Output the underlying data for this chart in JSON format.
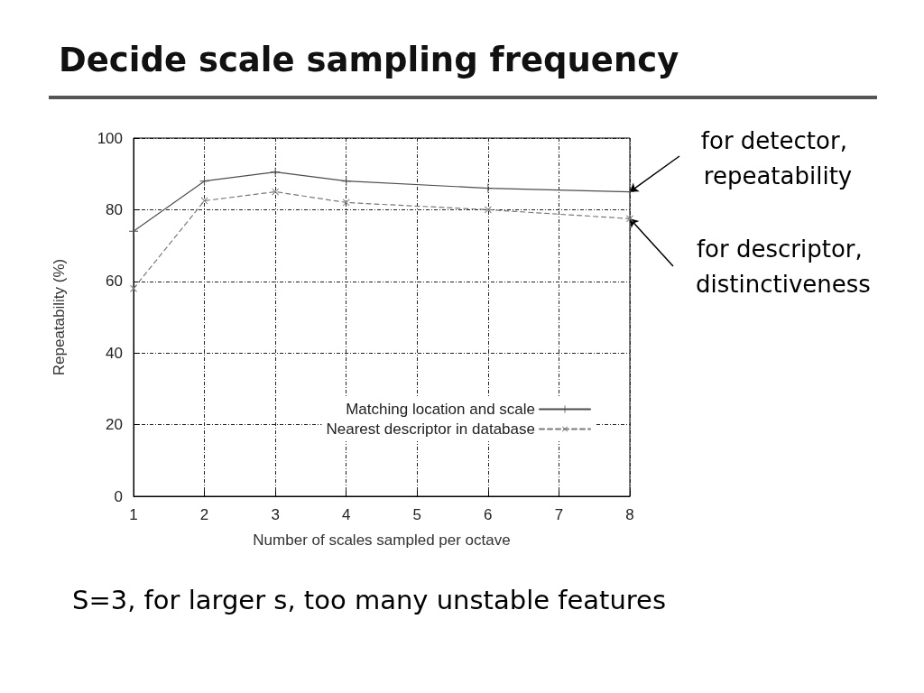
{
  "chart_data": {
    "type": "line",
    "title": "Decide scale sampling frequency",
    "xlabel": "Number of scales sampled per octave",
    "ylabel": "Repeatability (%)",
    "x": [
      1,
      2,
      3,
      4,
      6,
      8
    ],
    "series": [
      {
        "name": "Matching location and scale",
        "color": "#4d4d4d",
        "line_style": "solid",
        "values": [
          74,
          88,
          90.5,
          88,
          86,
          85
        ]
      },
      {
        "name": "Nearest descriptor in database",
        "color": "#7a7a7a",
        "line_style": "dashed",
        "values": [
          58,
          82.5,
          85,
          82,
          80,
          77.5
        ]
      }
    ],
    "xlim": [
      1,
      8
    ],
    "xticks": [
      1,
      2,
      3,
      4,
      5,
      6,
      7,
      8
    ],
    "ylim": [
      0,
      100
    ],
    "yticks": [
      0,
      20,
      40,
      60,
      80,
      100
    ],
    "grid": true,
    "legend": "bottom right",
    "marker": "cross",
    "annotations": [
      {
        "text": "for detector, repeatability",
        "x": 8,
        "y": 85
      },
      {
        "text": "for descriptor, distinctiveness",
        "x": 8,
        "y": 77.5
      },
      "S=3, for larger s, too many unstable features"
    ]
  }
}
